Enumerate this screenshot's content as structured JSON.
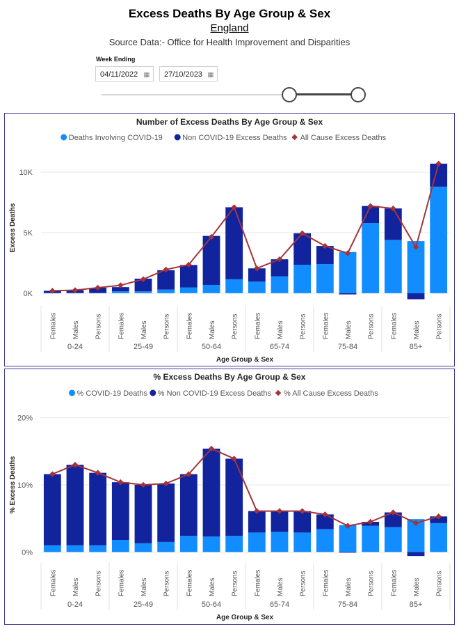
{
  "header": {
    "title": "Excess Deaths By Age Group & Sex",
    "subtitle": "England",
    "source": "Source Data:- Office for Health Improvement and Disparities"
  },
  "slicer": {
    "label": "Week Ending",
    "start_date": "04/11/2022",
    "end_date": "27/10/2023",
    "calendar_icon": "calendar-icon"
  },
  "colors": {
    "covid": "#118dff",
    "non_covid": "#12239e",
    "all_cause": "#a4343a",
    "axis_text": "#555555",
    "gridline": "#e6e6e6"
  },
  "chart_data": [
    {
      "type": "bar",
      "stacked": true,
      "title": "Number of Excess Deaths By Age Group & Sex",
      "xlabel": "Age Group & Sex",
      "ylabel": "Excess Deaths",
      "ylim": [
        -700,
        11500
      ],
      "yticks": [
        0,
        5000,
        10000
      ],
      "ytick_labels": [
        "0K",
        "5K",
        "10K"
      ],
      "legend_position": "top-center",
      "groups": [
        "0-24",
        "25-49",
        "50-64",
        "65-74",
        "75-84",
        "85+"
      ],
      "categories": [
        "Females",
        "Males",
        "Persons",
        "Females",
        "Males",
        "Persons",
        "Females",
        "Males",
        "Persons",
        "Females",
        "Males",
        "Persons",
        "Females",
        "Males",
        "Persons",
        "Females",
        "Males",
        "Persons"
      ],
      "series": [
        {
          "name": "Deaths Involving COVID-19",
          "kind": "bar",
          "values": [
            10,
            10,
            20,
            150,
            150,
            300,
            480,
            680,
            1150,
            950,
            1400,
            2350,
            2400,
            3400,
            5800,
            4400,
            4300,
            8800
          ]
        },
        {
          "name": "Non COVID-19 Excess Deaths",
          "kind": "bar",
          "values": [
            190,
            240,
            430,
            350,
            1050,
            1600,
            1850,
            4050,
            5950,
            1100,
            1400,
            2600,
            1500,
            -100,
            1400,
            2600,
            -500,
            1900
          ]
        },
        {
          "name": "All Cause Excess Deaths",
          "kind": "line",
          "values": [
            200,
            250,
            450,
            650,
            1150,
            1950,
            2350,
            4650,
            7100,
            2050,
            2800,
            4950,
            3900,
            3300,
            7200,
            7000,
            3800,
            10700
          ]
        }
      ]
    },
    {
      "type": "bar",
      "stacked": true,
      "title": "% Excess Deaths By Age Group & Sex",
      "xlabel": "Age Group & Sex",
      "ylabel": "% Excess Deaths",
      "ylim": [
        -1,
        21
      ],
      "yticks": [
        0,
        10,
        20
      ],
      "ytick_labels": [
        "0%",
        "10%",
        "20%"
      ],
      "legend_position": "top-center",
      "groups": [
        "0-24",
        "25-49",
        "50-64",
        "65-74",
        "75-84",
        "85+"
      ],
      "categories": [
        "Females",
        "Males",
        "Persons",
        "Females",
        "Males",
        "Persons",
        "Females",
        "Males",
        "Persons",
        "Females",
        "Males",
        "Persons",
        "Females",
        "Males",
        "Persons",
        "Females",
        "Males",
        "Persons"
      ],
      "series": [
        {
          "name": "% COVID-19 Deaths",
          "kind": "bar",
          "values": [
            1.0,
            1.0,
            1.0,
            1.8,
            1.3,
            1.5,
            2.4,
            2.3,
            2.4,
            2.9,
            3.0,
            2.9,
            3.4,
            4.0,
            3.9,
            3.7,
            4.9,
            4.3
          ]
        },
        {
          "name": "% Non COVID-19 Excess Deaths",
          "kind": "bar",
          "values": [
            10.6,
            12.0,
            10.8,
            8.6,
            8.7,
            8.7,
            9.2,
            13.1,
            11.5,
            3.2,
            3.1,
            3.2,
            2.2,
            -0.1,
            0.6,
            2.2,
            -0.6,
            1.0
          ]
        },
        {
          "name": "% All Cause Excess Deaths",
          "kind": "line",
          "values": [
            11.6,
            13.0,
            11.8,
            10.4,
            10.0,
            10.2,
            11.6,
            15.4,
            13.9,
            6.1,
            6.1,
            6.1,
            5.6,
            3.9,
            4.5,
            5.9,
            4.3,
            5.3
          ]
        }
      ]
    }
  ]
}
